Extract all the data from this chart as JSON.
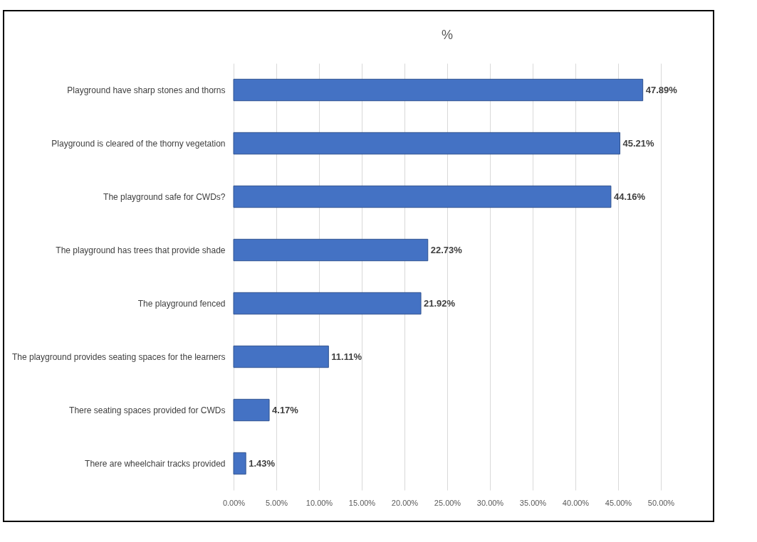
{
  "chart_data": {
    "type": "bar",
    "orientation": "horizontal",
    "title": "%",
    "categories": [
      "Playground have sharp stones and thorns",
      "Playground is cleared of the thorny vegetation",
      "The playground safe for CWDs?",
      "The playground has trees that provide shade",
      "The playground fenced",
      "The playground provides seating spaces for the learners",
      "There seating spaces provided for CWDs",
      "There are wheelchair tracks provided"
    ],
    "values": [
      47.89,
      45.21,
      44.16,
      22.73,
      21.92,
      11.11,
      4.17,
      1.43
    ],
    "value_labels": [
      "47.89%",
      "45.21%",
      "44.16%",
      "22.73%",
      "21.92%",
      "11.11%",
      "4.17%",
      "1.43%"
    ],
    "color": "#4472c4",
    "xlim": [
      0,
      50
    ],
    "xticks": [
      {
        "value": 0,
        "label": "0.00%"
      },
      {
        "value": 5,
        "label": "5.00%"
      },
      {
        "value": 10,
        "label": "10.00%"
      },
      {
        "value": 15,
        "label": "15.00%"
      },
      {
        "value": 20,
        "label": "20.00%"
      },
      {
        "value": 25,
        "label": "25.00%"
      },
      {
        "value": 30,
        "label": "30.00%"
      },
      {
        "value": 35,
        "label": "35.00%"
      },
      {
        "value": 40,
        "label": "40.00%"
      },
      {
        "value": 45,
        "label": "45.00%"
      },
      {
        "value": 50,
        "label": "50.00%"
      }
    ],
    "grid": "x"
  }
}
